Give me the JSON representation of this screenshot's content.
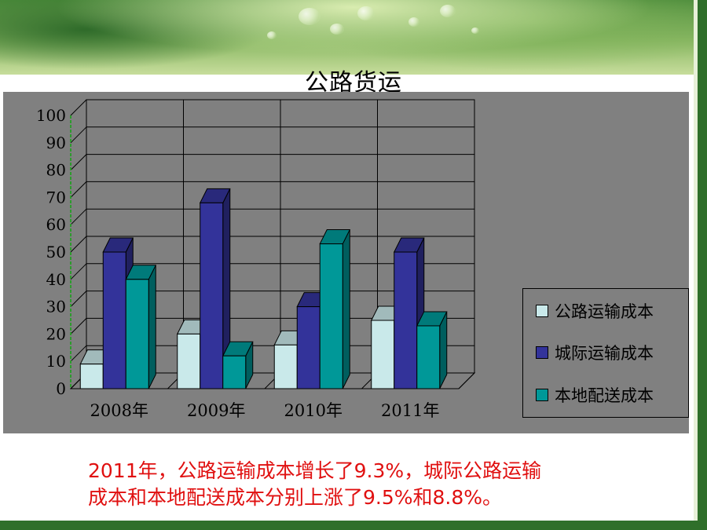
{
  "slide_title": "公路货运",
  "caption": {
    "line1": "2011年，公路运输成本增长了9.3%，城际公路运输",
    "line2": "成本和本地配送成本分别上涨了9.5%和8.8%。"
  },
  "colors": {
    "series_colors": [
      "#c9e9ea",
      "#33339a",
      "#009898"
    ],
    "panel_bg": "#808080",
    "caption_color": "#e01010"
  },
  "chart_data": {
    "type": "bar",
    "title": "",
    "xlabel": "",
    "ylabel": "",
    "ylim": [
      0,
      100
    ],
    "yticks": [
      "0",
      "10",
      "20",
      "30",
      "40",
      "50",
      "60",
      "70",
      "80",
      "90",
      "100"
    ],
    "categories": [
      "2008年",
      "2009年",
      "2010年",
      "2011年"
    ],
    "series": [
      {
        "name": "公路运输成本",
        "values": [
          9,
          20,
          16,
          25
        ]
      },
      {
        "name": "城际运输成本",
        "values": [
          50,
          68,
          30,
          50
        ]
      },
      {
        "name": "本地配送成本",
        "values": [
          40,
          12,
          53,
          23
        ]
      }
    ],
    "grid": true,
    "legend_position": "right",
    "style": "3d"
  }
}
